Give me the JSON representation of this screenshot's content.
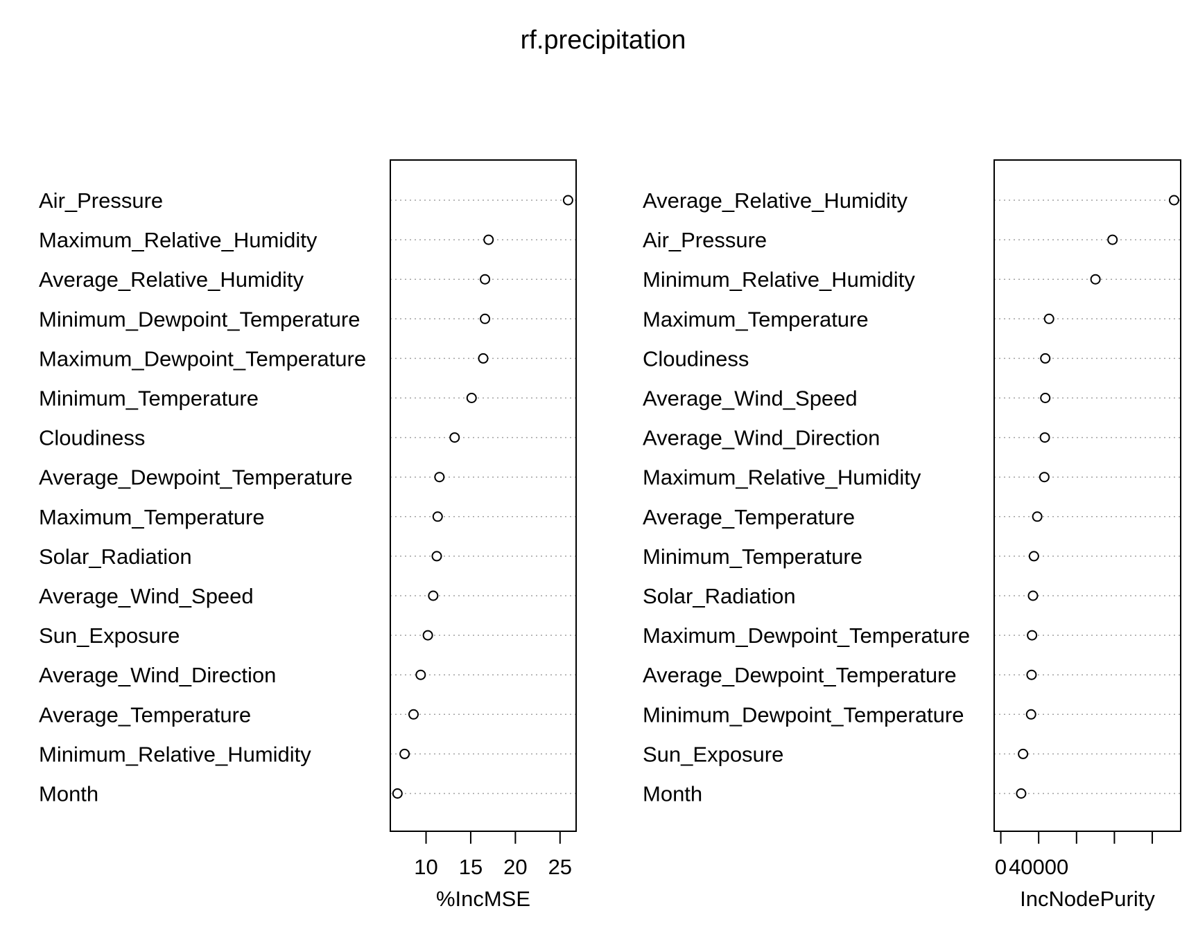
{
  "title": "rf.precipitation",
  "chart_data": [
    {
      "type": "scatter",
      "title": "",
      "xlabel": "%IncMSE",
      "ylabel": "",
      "xlim": [
        6.0,
        26.8
      ],
      "x_ticks": [
        10,
        15,
        20,
        25
      ],
      "x_tick_labels": [
        "10",
        "15",
        "20",
        "25"
      ],
      "grid": "dotted horizontal",
      "categories": [
        "Air_Pressure",
        "Maximum_Relative_Humidity",
        "Average_Relative_Humidity",
        "Minimum_Dewpoint_Temperature",
        "Maximum_Dewpoint_Temperature",
        "Minimum_Temperature",
        "Cloudiness",
        "Average_Dewpoint_Temperature",
        "Maximum_Temperature",
        "Solar_Radiation",
        "Average_Wind_Speed",
        "Sun_Exposure",
        "Average_Wind_Direction",
        "Average_Temperature",
        "Minimum_Relative_Humidity",
        "Month"
      ],
      "values": [
        25.9,
        17.0,
        16.6,
        16.6,
        16.4,
        15.1,
        13.2,
        11.5,
        11.3,
        11.2,
        10.8,
        10.2,
        9.4,
        8.6,
        7.6,
        6.8
      ]
    },
    {
      "type": "scatter",
      "title": "",
      "xlabel": "IncNodePurity",
      "ylabel": "",
      "xlim": [
        -7000,
        190000
      ],
      "x_ticks": [
        0,
        40000,
        80000,
        120000,
        160000
      ],
      "x_tick_labels": [
        "0",
        "40000",
        "",
        "",
        ""
      ],
      "grid": "dotted horizontal",
      "categories": [
        "Average_Relative_Humidity",
        "Air_Pressure",
        "Minimum_Relative_Humidity",
        "Maximum_Temperature",
        "Cloudiness",
        "Average_Wind_Speed",
        "Average_Wind_Direction",
        "Maximum_Relative_Humidity",
        "Average_Temperature",
        "Minimum_Temperature",
        "Solar_Radiation",
        "Maximum_Dewpoint_Temperature",
        "Average_Dewpoint_Temperature",
        "Minimum_Dewpoint_Temperature",
        "Sun_Exposure",
        "Month"
      ],
      "values": [
        183000,
        118000,
        100000,
        51000,
        47000,
        47000,
        46500,
        46000,
        38500,
        35000,
        34000,
        33000,
        32500,
        32000,
        23500,
        21500
      ]
    }
  ]
}
